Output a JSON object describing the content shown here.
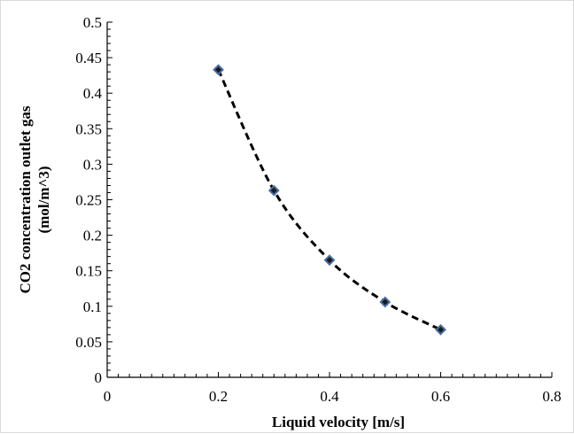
{
  "chart_data": {
    "type": "scatter",
    "title": "",
    "xlabel": "Liquid velocity [m/s]",
    "ylabel_line1": "CO2 concentration outlet gas",
    "ylabel_line2": "(mol/m^3)",
    "xlim": [
      0,
      0.8
    ],
    "ylim": [
      0,
      0.5
    ],
    "x_ticks": [
      "0",
      "0.2",
      "0.4",
      "0.6",
      "0.8"
    ],
    "y_ticks": [
      "0",
      "0.05",
      "0.1",
      "0.15",
      "0.2",
      "0.25",
      "0.3",
      "0.35",
      "0.4",
      "0.45",
      "0.5"
    ],
    "grid": false,
    "legend": "none",
    "series": [
      {
        "x": [
          0.2,
          0.3,
          0.4,
          0.5,
          0.6
        ],
        "y": [
          0.433,
          0.263,
          0.165,
          0.106,
          0.067
        ],
        "marker": "diamond",
        "marker_color": "#4a6fa5",
        "line_style": "dashed",
        "line_color": "#000000"
      }
    ]
  }
}
